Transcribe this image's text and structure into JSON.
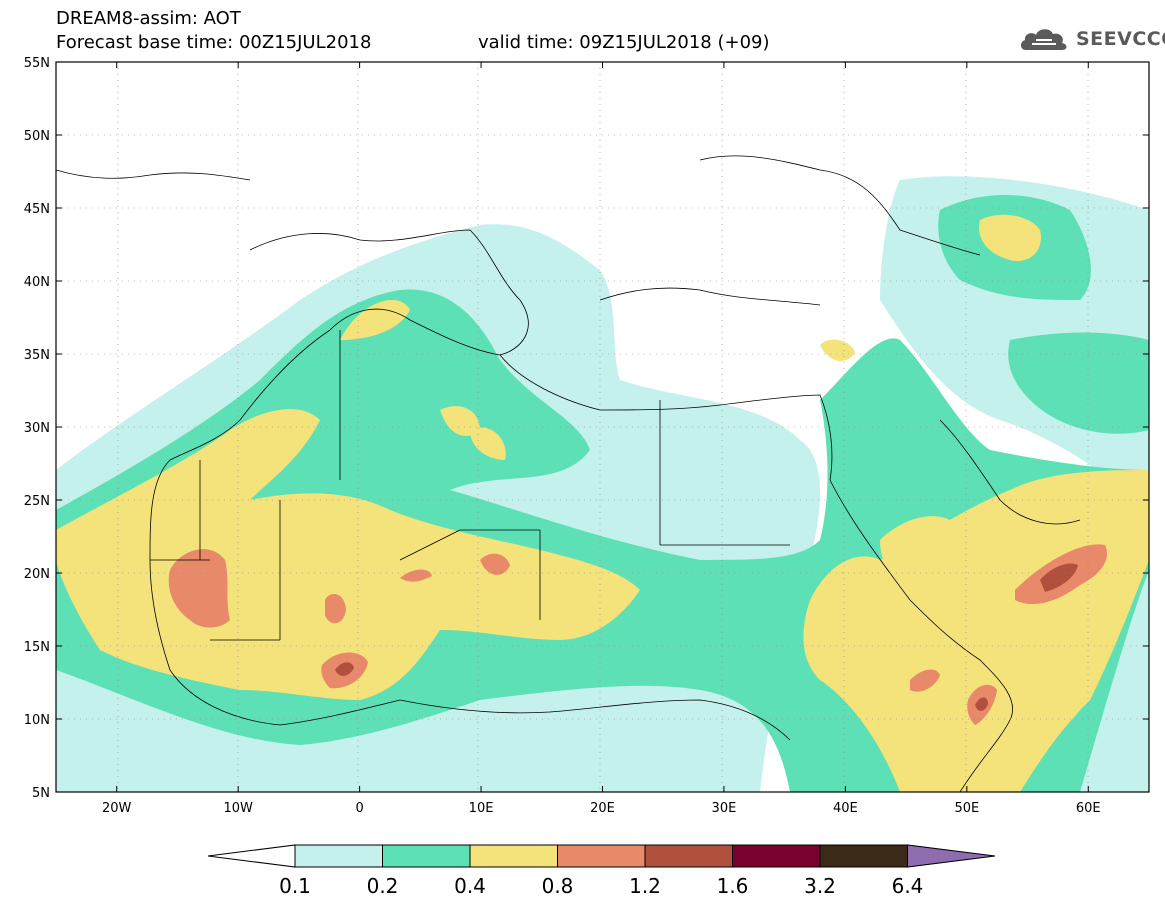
{
  "header": {
    "title": "DREAM8-assim: AOT",
    "base_time": "Forecast base time: 00Z15JUL2018",
    "valid_time": "valid time: 09Z15JUL2018 (+09)"
  },
  "logo": {
    "text": "SEEVCCC",
    "icon": "cloud-icon"
  },
  "map": {
    "lat_labels": [
      "55N",
      "50N",
      "45N",
      "40N",
      "35N",
      "30N",
      "25N",
      "20N",
      "15N",
      "10N",
      "5N"
    ],
    "lon_labels": [
      "20W",
      "10W",
      "0",
      "10E",
      "20E",
      "30E",
      "40E",
      "50E",
      "60E"
    ],
    "lon_range": [
      -25,
      65
    ],
    "lat_range": [
      5,
      55
    ]
  },
  "legend": {
    "levels": [
      "0.1",
      "0.2",
      "0.4",
      "0.8",
      "1.2",
      "1.6",
      "3.2",
      "6.4"
    ],
    "colors": [
      "#c4f1eb",
      "#5ee0b6",
      "#f4e27a",
      "#e8896a",
      "#b2503e",
      "#7a0030",
      "#3c2a18",
      "#8f6bb0"
    ]
  },
  "colors": {
    "c1": "#c4f1eb",
    "c2": "#5ee0b6",
    "c3": "#f4e27a",
    "c4": "#e8896a",
    "c5": "#b2503e",
    "c6": "#7a0030"
  }
}
